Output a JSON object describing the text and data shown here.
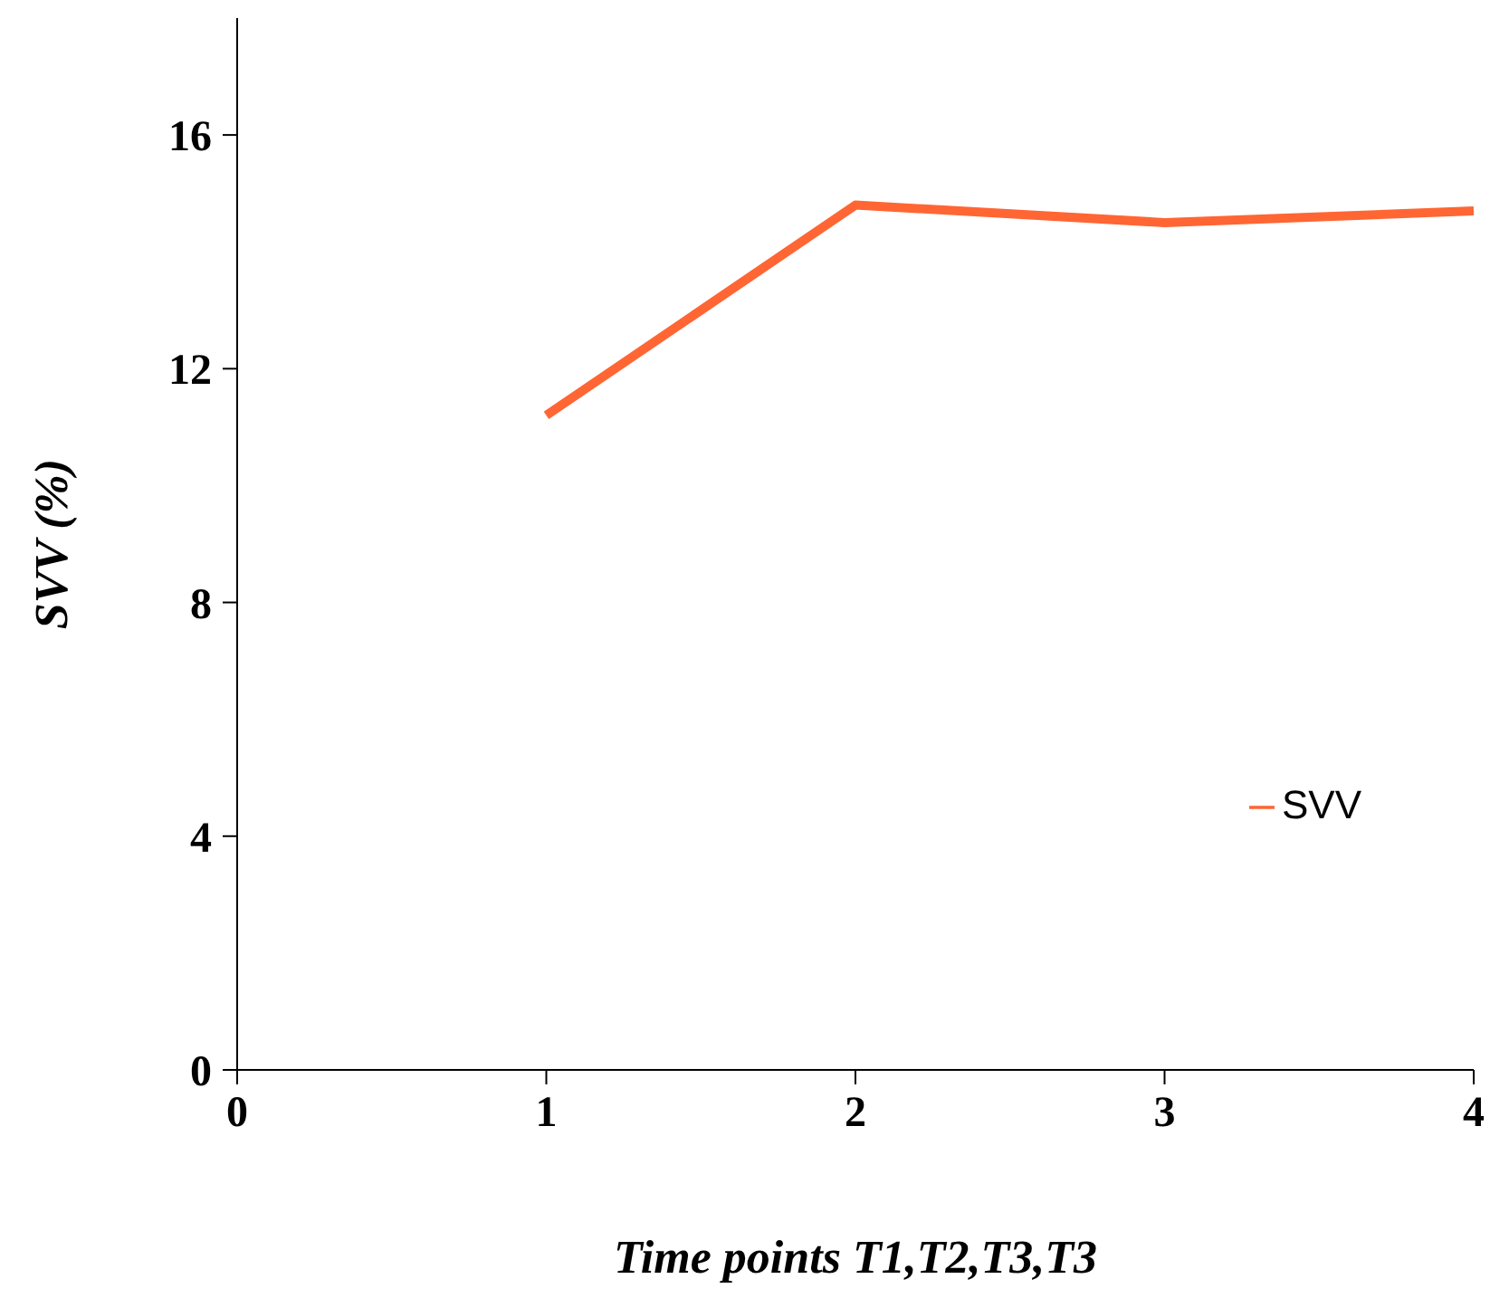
{
  "chart_data": {
    "type": "line",
    "xlabel": "Time points T1,T2,T3,T3",
    "ylabel": "SVV (%)",
    "x": [
      1,
      2,
      3,
      4
    ],
    "series": [
      {
        "name": "SVV",
        "color": "#ff6633",
        "values": [
          11.2,
          14.8,
          14.5,
          14.7
        ]
      }
    ],
    "xlim": [
      0,
      4
    ],
    "xticks": [
      0,
      1,
      2,
      3,
      4
    ],
    "ylim": [
      0,
      18
    ],
    "yticks": [
      0,
      4,
      8,
      12,
      16
    ],
    "grid": false,
    "legend": "right",
    "marker": "none",
    "line_style": "solid"
  }
}
